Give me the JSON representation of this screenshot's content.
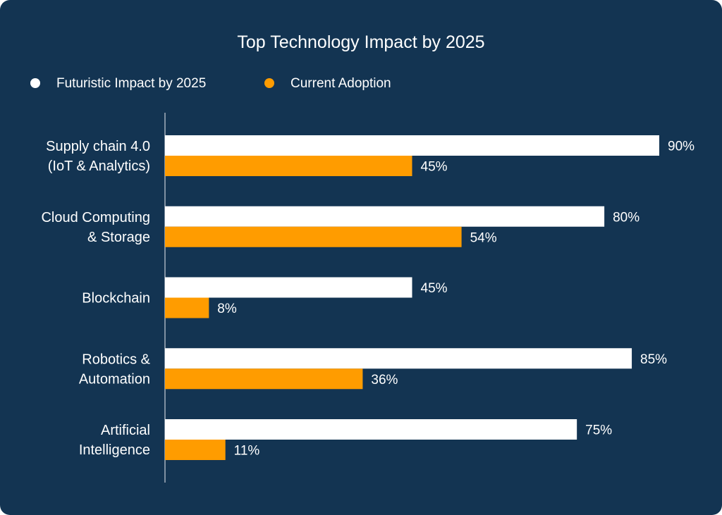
{
  "chart_data": {
    "type": "bar",
    "orientation": "horizontal",
    "title": "Top Technology Impact by 2025",
    "categories": [
      "Supply chain 4.0\n(IoT & Analytics)",
      "Cloud Computing\n& Storage",
      "Blockchain",
      "Robotics &\nAutomation",
      "Artificial\nIntelligence"
    ],
    "series": [
      {
        "name": "Futuristic Impact by 2025",
        "color": "#ffffff",
        "values": [
          90,
          80,
          45,
          85,
          75
        ]
      },
      {
        "name": "Current Adoption",
        "color": "#ff9c00",
        "values": [
          45,
          54,
          8,
          36,
          11
        ]
      }
    ],
    "value_suffix": "%",
    "xlim": [
      0,
      100
    ],
    "grid": false,
    "legend_position": "top-left",
    "background": "#133452"
  }
}
